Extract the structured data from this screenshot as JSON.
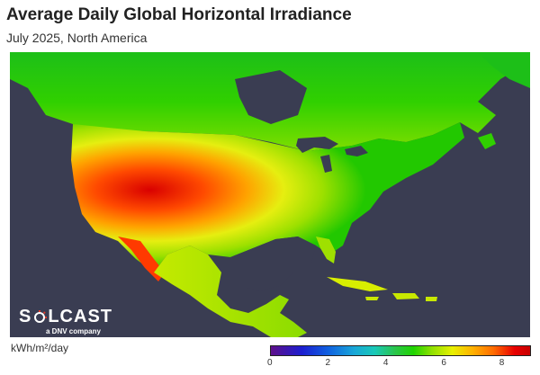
{
  "header": {
    "title": "Average Daily Global Horizontal Irradiance",
    "subtitle": "July 2025, North America"
  },
  "logo": {
    "word_left": "S",
    "word_right": "LCAST",
    "tagline": "a DNV company"
  },
  "legend": {
    "units": "kWh/m²/day",
    "ticks": [
      "0",
      "2",
      "4",
      "6",
      "8"
    ],
    "range": [
      0,
      9
    ],
    "colors": [
      "#5e0f8a",
      "#1c1ed0",
      "#19a6d8",
      "#2ac54a",
      "#1fd400",
      "#e8f000",
      "#ffb000",
      "#ff6a00",
      "#e80000"
    ]
  },
  "map": {
    "background_color": "#3a3d52",
    "region": "North America"
  }
}
